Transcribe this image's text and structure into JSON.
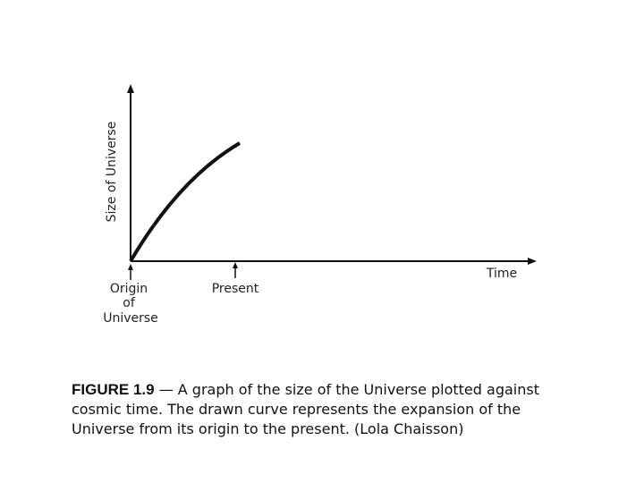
{
  "diagram": {
    "y_axis_label": "Size of Universe",
    "x_axis_label": "Time",
    "markers": [
      {
        "label": [
          "Origin",
          "of",
          "Universe"
        ]
      },
      {
        "label": "Present"
      }
    ]
  },
  "caption": {
    "figure": "FIGURE 1.9",
    "text": "— A graph of the size of the Universe plotted against cosmic time. The drawn curve represents the expansion of the Universe from its origin to the present. (Lola Chaisson)"
  }
}
